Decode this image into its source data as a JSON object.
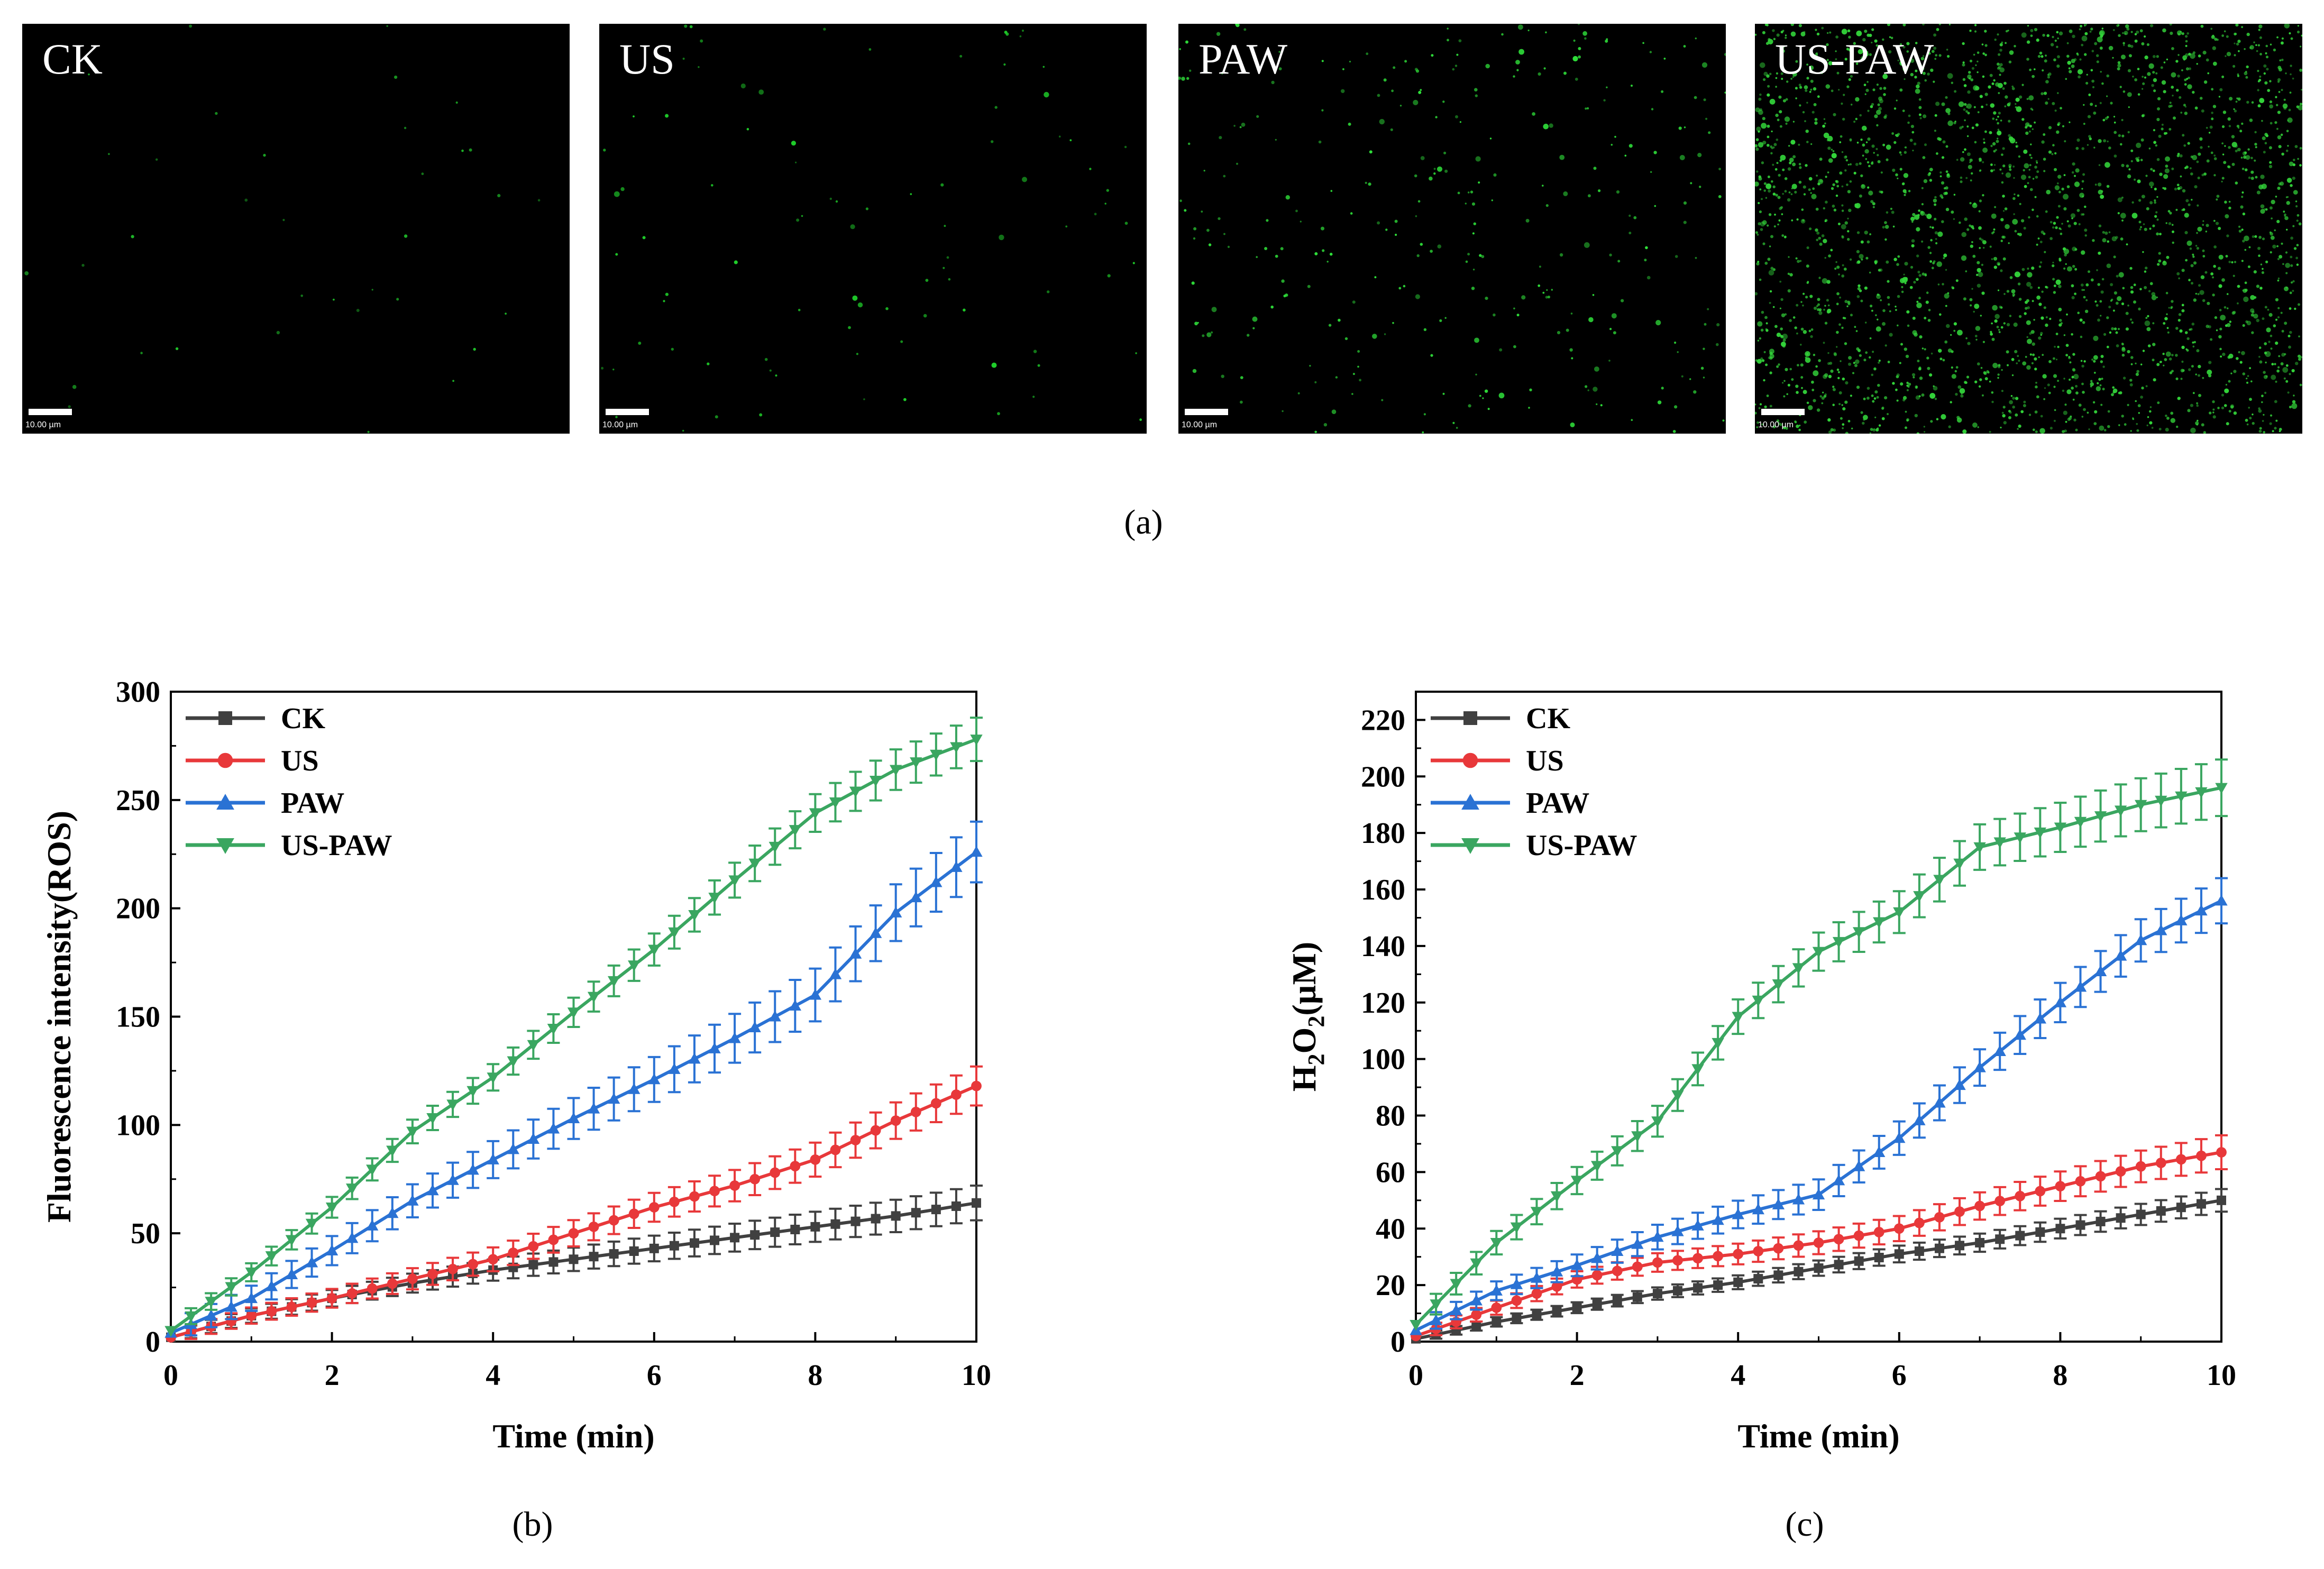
{
  "panel_a": {
    "caption": "(a)",
    "images": [
      {
        "label": "CK",
        "scale": "10.00 µm",
        "dot_count": 35,
        "dot_color": "#1fbf2a"
      },
      {
        "label": "US",
        "scale": "10.00 µm",
        "dot_count": 90,
        "dot_color": "#1fcf2a"
      },
      {
        "label": "PAW",
        "scale": "10.00 µm",
        "dot_count": 320,
        "dot_color": "#2fe03a"
      },
      {
        "label": "US-PAW",
        "scale": "10.00 µm",
        "dot_count": 2600,
        "dot_color": "#33d43a"
      }
    ]
  },
  "colors": {
    "CK": "#404040",
    "US": "#e8383a",
    "PAW": "#2a72d4",
    "US-PAW": "#3aa660"
  },
  "chart_data": [
    {
      "type": "line",
      "caption": "(b)",
      "xlabel": "Time (min)",
      "ylabel": "Fluorescence intensity(ROS)",
      "xlim": [
        0,
        10
      ],
      "ylim": [
        0,
        300
      ],
      "xticks": [
        "0",
        "2",
        "4",
        "6",
        "8",
        "10"
      ],
      "yticks": [
        "0",
        "50",
        "100",
        "150",
        "200",
        "250",
        "300"
      ],
      "legend_position": "top-left",
      "x": [
        0,
        1,
        2,
        3,
        4,
        5,
        6,
        7,
        8,
        9,
        10
      ],
      "series": [
        {
          "name": "CK",
          "marker": "square",
          "values": [
            2,
            12,
            20,
            27,
            33,
            38,
            43,
            48,
            53,
            58,
            64
          ],
          "error": 8
        },
        {
          "name": "US",
          "marker": "circle",
          "values": [
            2,
            12,
            20,
            29,
            38,
            50,
            62,
            72,
            84,
            102,
            118
          ],
          "error": 9
        },
        {
          "name": "PAW",
          "marker": "triangle-up",
          "values": [
            4,
            20,
            42,
            65,
            84,
            103,
            121,
            140,
            160,
            198,
            226
          ],
          "error": 14
        },
        {
          "name": "US-PAW",
          "marker": "triangle-down",
          "values": [
            5,
            32,
            62,
            97,
            122,
            152,
            181,
            213,
            244,
            264,
            278
          ],
          "error": 10
        }
      ]
    },
    {
      "type": "line",
      "caption": "(c)",
      "xlabel": "Time (min)",
      "ylabel": "H2O2(µM)",
      "ylabel_parts": [
        "H",
        "2",
        "O",
        "2",
        "(µM)"
      ],
      "xlim": [
        0,
        10
      ],
      "ylim": [
        0,
        230
      ],
      "xticks": [
        "0",
        "2",
        "4",
        "6",
        "8",
        "10"
      ],
      "yticks": [
        "0",
        "20",
        "40",
        "60",
        "80",
        "100",
        "120",
        "140",
        "160",
        "180",
        "200",
        "220"
      ],
      "legend_position": "top-left",
      "x": [
        0,
        1,
        2,
        3,
        4,
        5,
        6,
        7,
        8,
        9,
        10
      ],
      "series": [
        {
          "name": "CK",
          "marker": "square",
          "values": [
            1,
            7,
            12,
            17,
            21,
            26,
            31,
            35,
            40,
            45,
            50
          ],
          "error": 4
        },
        {
          "name": "US",
          "marker": "circle",
          "values": [
            2,
            12,
            22,
            28,
            31,
            35,
            40,
            48,
            55,
            62,
            67
          ],
          "error": 6
        },
        {
          "name": "PAW",
          "marker": "triangle-up",
          "values": [
            4,
            18,
            27,
            37,
            45,
            52,
            72,
            97,
            120,
            142,
            156
          ],
          "error": 8
        },
        {
          "name": "US-PAW",
          "marker": "triangle-down",
          "values": [
            6,
            35,
            57,
            78,
            115,
            138,
            152,
            175,
            182,
            190,
            196
          ],
          "error": 10
        }
      ]
    }
  ]
}
